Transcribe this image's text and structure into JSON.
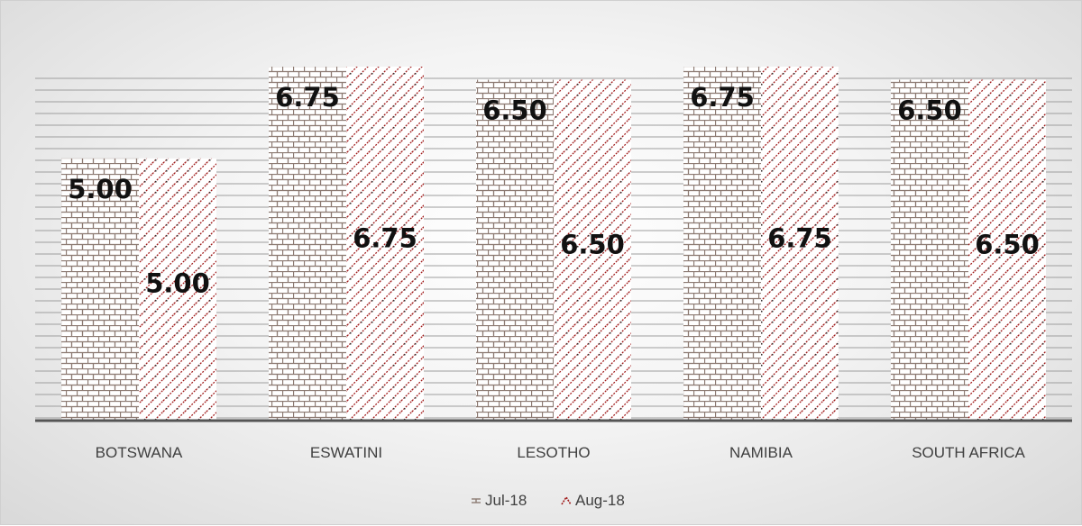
{
  "chart_data": {
    "type": "bar",
    "categories": [
      "BOTSWANA",
      "ESWATINI",
      "LESOTHO",
      "NAMIBIA",
      "SOUTH AFRICA"
    ],
    "series": [
      {
        "name": "Jul-18",
        "values": [
          5.0,
          6.75,
          6.5,
          6.75,
          6.5
        ],
        "color": "#8c7a72",
        "pattern": "brick"
      },
      {
        "name": "Aug-18",
        "values": [
          5.0,
          6.75,
          6.5,
          6.75,
          6.5
        ],
        "color": "#a01a1a",
        "pattern": "diagonal-dots"
      }
    ],
    "ylim": [
      0,
      6.75
    ],
    "grid": true,
    "legend": "bottom",
    "data_labels": true
  }
}
